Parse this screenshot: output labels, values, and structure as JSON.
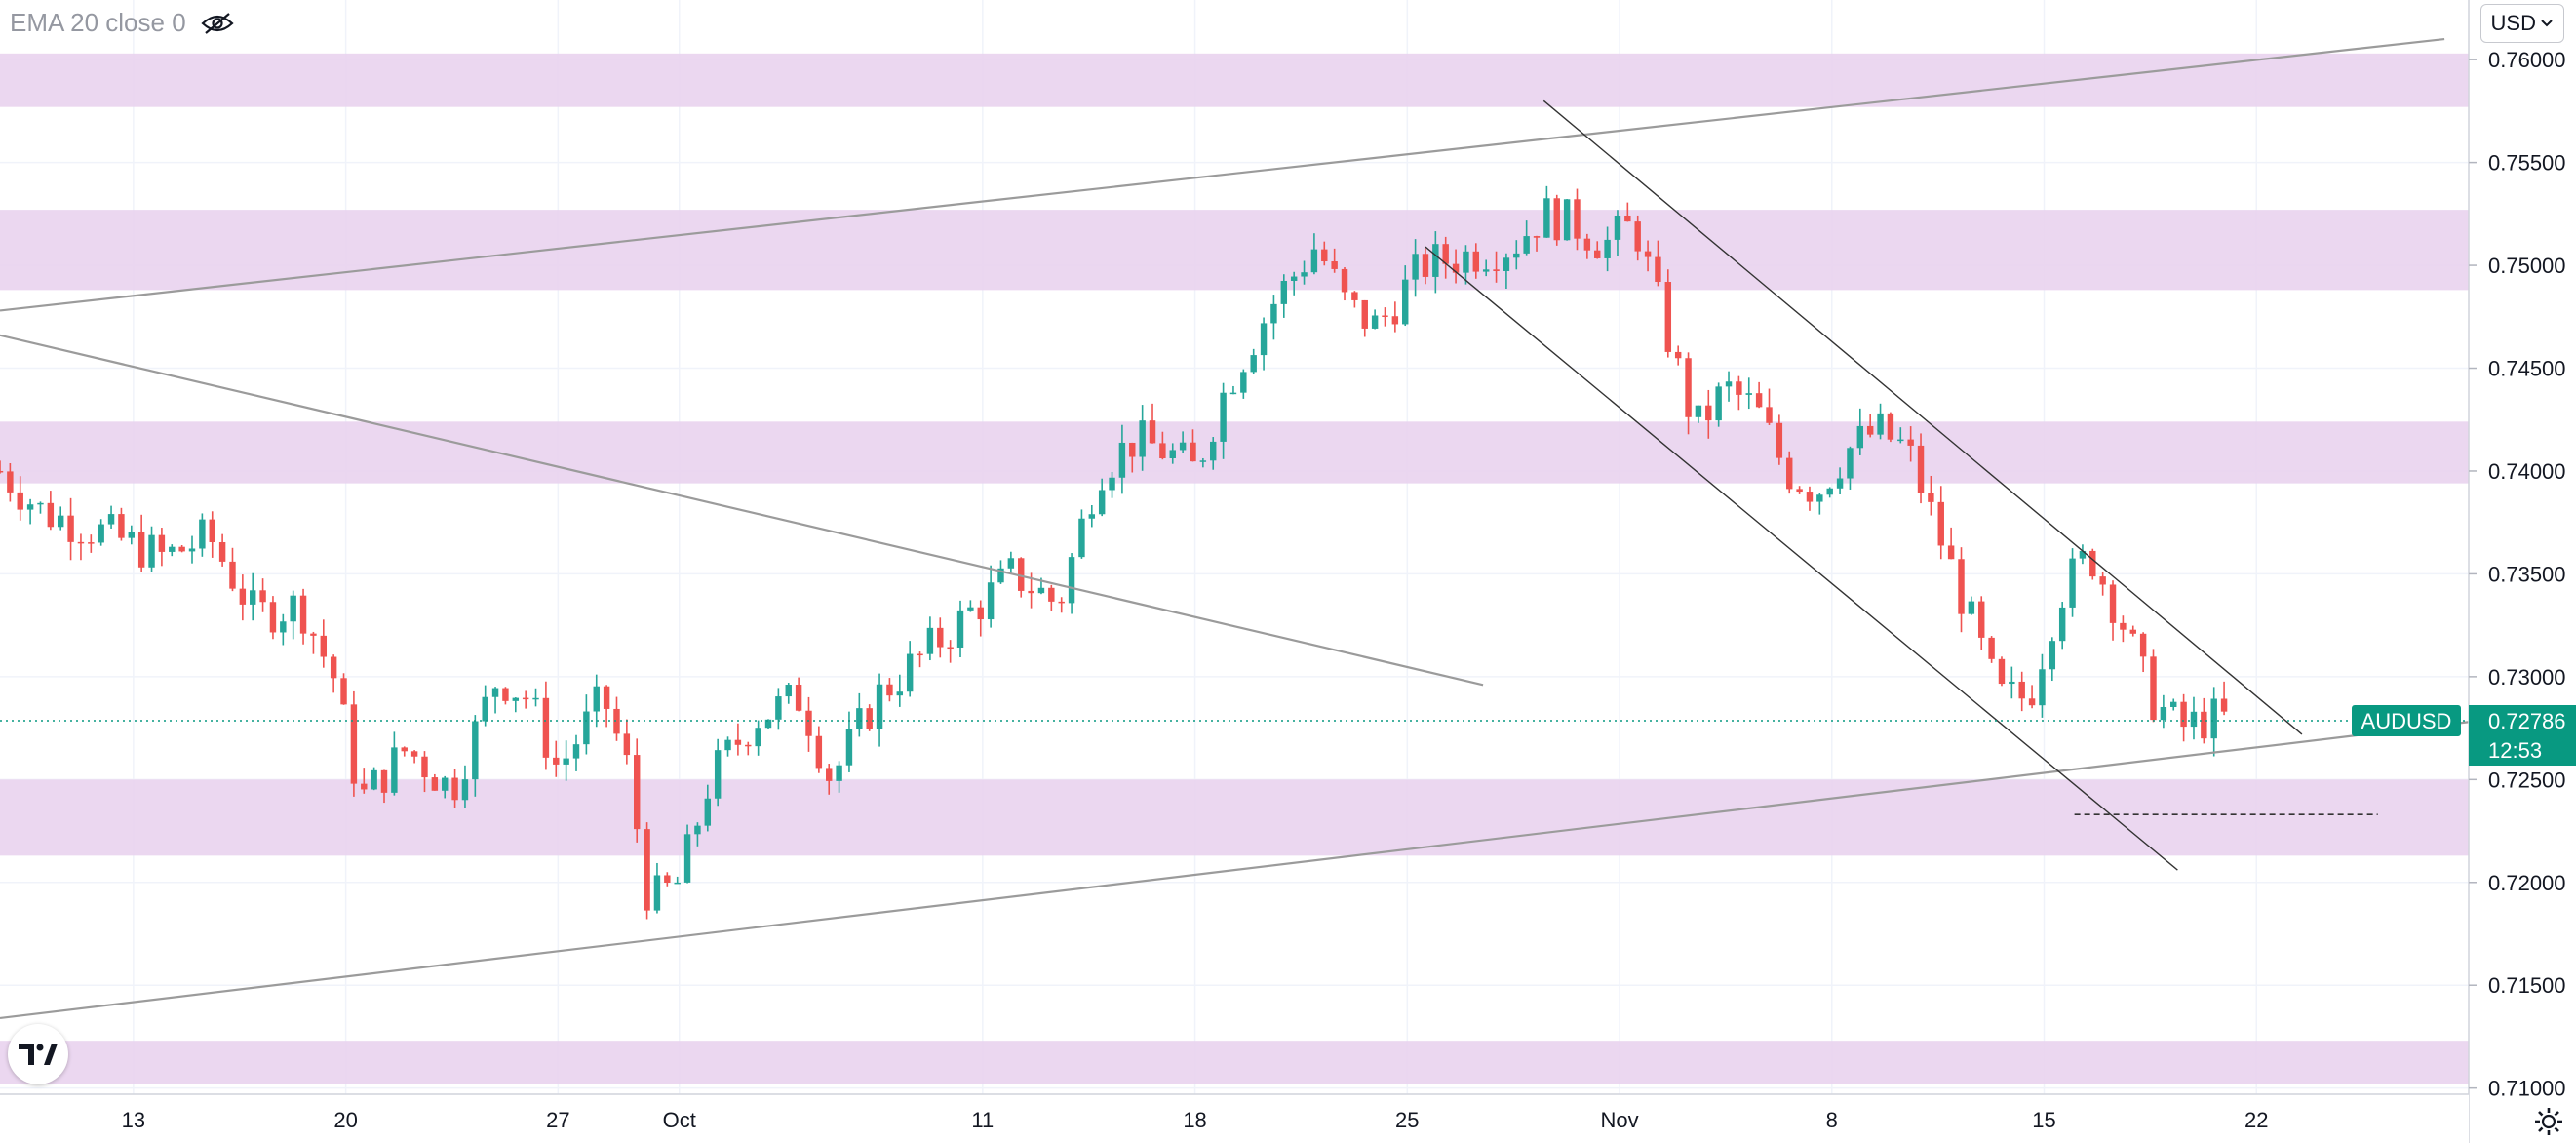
{
  "legend": {
    "indicator_label": "EMA 20 close 0",
    "visibility_icon": "eye-off-icon"
  },
  "currency": {
    "label": "USD",
    "icon": "chevron-down-icon"
  },
  "logo": {
    "icon": "tradingview-logo-icon"
  },
  "settings": {
    "icon": "gear-icon"
  },
  "chart_data": {
    "type": "candlestick",
    "symbol": "AUDUSD",
    "last_price": "0.72786",
    "countdown": "12:53",
    "y_axis": {
      "ticks": [
        "0.76000",
        "0.75500",
        "0.75000",
        "0.74500",
        "0.74000",
        "0.73500",
        "0.73000",
        "0.72500",
        "0.72000",
        "0.71500",
        "0.71000"
      ],
      "ylim": [
        0.7097,
        0.7629
      ]
    },
    "x_axis": {
      "ticks": [
        {
          "label": "13",
          "day": 13
        },
        {
          "label": "20",
          "day": 20
        },
        {
          "label": "27",
          "day": 27
        },
        {
          "label": "Oct",
          "day": 31
        },
        {
          "label": "11",
          "day": 41
        },
        {
          "label": "18",
          "day": 48
        },
        {
          "label": "25",
          "day": 55
        },
        {
          "label": "Nov",
          "day": 62
        },
        {
          "label": "8",
          "day": 69
        },
        {
          "label": "15",
          "day": 76
        },
        {
          "label": "22",
          "day": 83
        }
      ],
      "xlim": [
        8.6,
        90
      ]
    },
    "colors": {
      "up": "#26a69a",
      "down": "#ef5350",
      "zone": "#e9d3ee",
      "trend": "#9b9b9b",
      "channel": "#333333",
      "last_price": "#089981"
    },
    "zones": [
      {
        "from": 0.7577,
        "to": 0.7603
      },
      {
        "from": 0.7488,
        "to": 0.7527
      },
      {
        "from": 0.7394,
        "to": 0.7424
      },
      {
        "from": 0.7213,
        "to": 0.725
      },
      {
        "from": 0.7102,
        "to": 0.7123
      }
    ],
    "trendlines": [
      {
        "name": "upper-trendline",
        "kind": "trend",
        "points": [
          [
            8.6,
            0.7478
          ],
          [
            89.2,
            0.761
          ]
        ]
      },
      {
        "name": "lower-trendline",
        "kind": "trend",
        "points": [
          [
            8.6,
            0.7134
          ],
          [
            90,
            0.7278
          ]
        ]
      },
      {
        "name": "falling-trendline",
        "kind": "trend",
        "points": [
          [
            8.6,
            0.7466
          ],
          [
            57.5,
            0.7296
          ]
        ]
      },
      {
        "name": "channel-top-line",
        "kind": "channel",
        "points": [
          [
            59.5,
            0.758
          ],
          [
            84.5,
            0.7272
          ]
        ]
      },
      {
        "name": "channel-bottom-line",
        "kind": "channel",
        "points": [
          [
            55.6,
            0.7509
          ],
          [
            80.4,
            0.7206
          ]
        ]
      },
      {
        "name": "support-dashed-line",
        "kind": "dashed",
        "points": [
          [
            77,
            0.7233
          ],
          [
            87,
            0.7233
          ]
        ]
      }
    ],
    "anchors": [
      [
        8.6,
        0.74
      ],
      [
        10,
        0.738
      ],
      [
        12,
        0.737
      ],
      [
        14,
        0.7358
      ],
      [
        15.5,
        0.7368
      ],
      [
        17,
        0.733
      ],
      [
        18.5,
        0.7335
      ],
      [
        19.6,
        0.73
      ],
      [
        20.5,
        0.724
      ],
      [
        22,
        0.7265
      ],
      [
        23.5,
        0.7245
      ],
      [
        25,
        0.73
      ],
      [
        26,
        0.729
      ],
      [
        27,
        0.7255
      ],
      [
        28.5,
        0.729
      ],
      [
        29.3,
        0.7255
      ],
      [
        30,
        0.719
      ],
      [
        31,
        0.72
      ],
      [
        32,
        0.725
      ],
      [
        33.5,
        0.728
      ],
      [
        35,
        0.729
      ],
      [
        36,
        0.725
      ],
      [
        37.5,
        0.729
      ],
      [
        39,
        0.731
      ],
      [
        40.5,
        0.733
      ],
      [
        42,
        0.735
      ],
      [
        43.5,
        0.7335
      ],
      [
        44.8,
        0.74
      ],
      [
        46,
        0.7415
      ],
      [
        47,
        0.741
      ],
      [
        48,
        0.74
      ],
      [
        49,
        0.744
      ],
      [
        50.5,
        0.748
      ],
      [
        52,
        0.751
      ],
      [
        53,
        0.748
      ],
      [
        54,
        0.747
      ],
      [
        55.5,
        0.75
      ],
      [
        57,
        0.7505
      ],
      [
        58.5,
        0.751
      ],
      [
        59.5,
        0.7525
      ],
      [
        60.5,
        0.752
      ],
      [
        61.5,
        0.751
      ],
      [
        62.5,
        0.752
      ],
      [
        63.5,
        0.747
      ],
      [
        64.5,
        0.742
      ],
      [
        65.5,
        0.744
      ],
      [
        66.5,
        0.743
      ],
      [
        67.5,
        0.74
      ],
      [
        68.5,
        0.739
      ],
      [
        69.5,
        0.741
      ],
      [
        70.5,
        0.742
      ],
      [
        71.5,
        0.741
      ],
      [
        72.5,
        0.737
      ],
      [
        73.5,
        0.733
      ],
      [
        74.5,
        0.729
      ],
      [
        75.5,
        0.729
      ],
      [
        76.5,
        0.734
      ],
      [
        77.5,
        0.736
      ],
      [
        78.5,
        0.733
      ],
      [
        79.5,
        0.729
      ],
      [
        80.5,
        0.7275
      ],
      [
        81.5,
        0.728
      ],
      [
        82,
        0.7279
      ]
    ],
    "candles_per_day": 3,
    "seed": 7
  }
}
